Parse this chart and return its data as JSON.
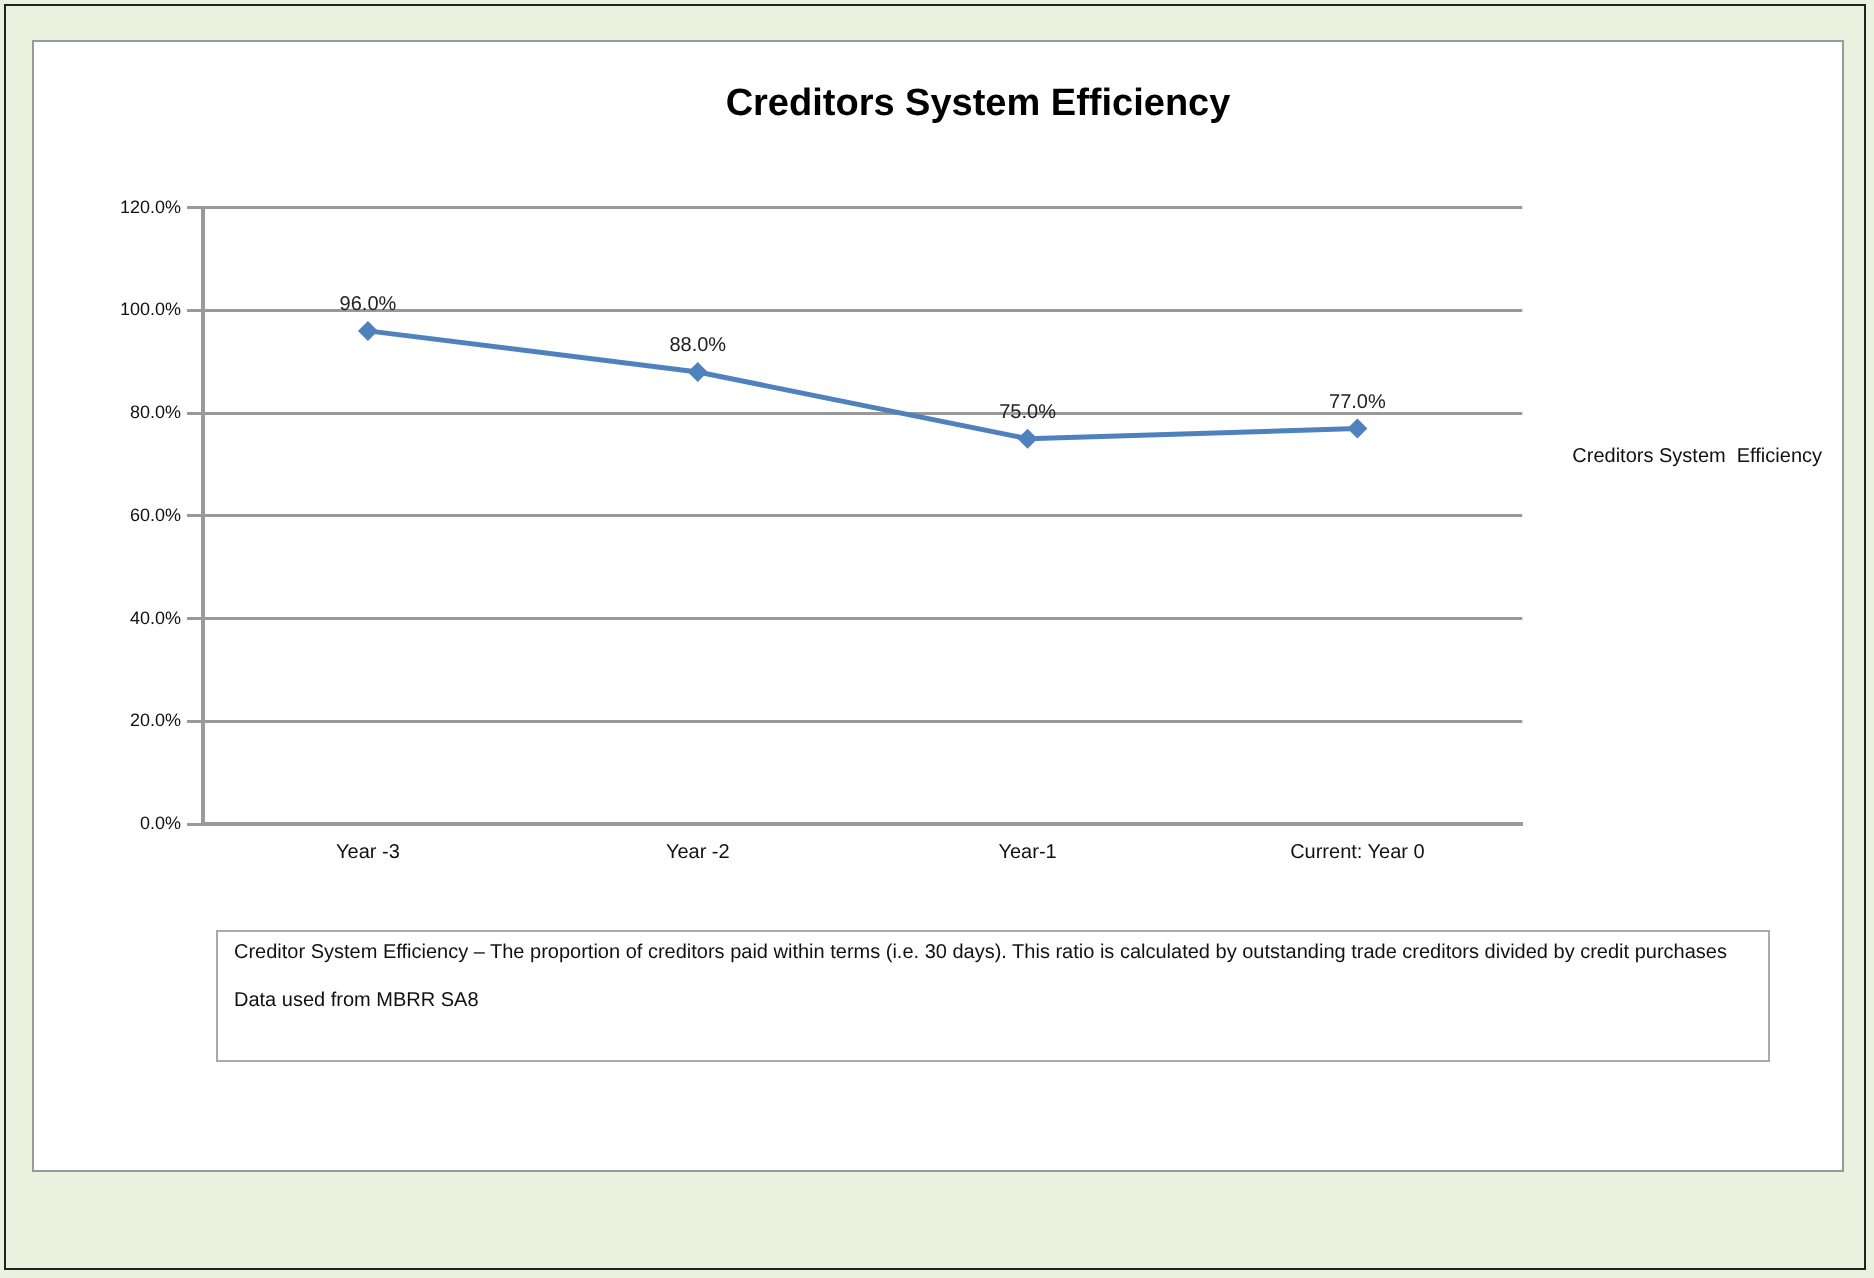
{
  "chart_data": {
    "type": "line",
    "title": "Creditors System Efficiency",
    "categories": [
      "Year -3",
      "Year -2",
      "Year-1",
      "Current: Year 0"
    ],
    "series": [
      {
        "name": "Creditors System  Efficiency",
        "color": "#4f81bd",
        "values": [
          96,
          88,
          75,
          77
        ],
        "value_labels": [
          "96.0%",
          "88.0%",
          "75.0%",
          "77.0%"
        ]
      }
    ],
    "ylim": [
      0,
      120
    ],
    "yticks": [
      {
        "value": 0,
        "label": "0.0%"
      },
      {
        "value": 20,
        "label": "20.0%"
      },
      {
        "value": 40,
        "label": "40.0%"
      },
      {
        "value": 60,
        "label": "60.0%"
      },
      {
        "value": 80,
        "label": "80.0%"
      },
      {
        "value": 100,
        "label": "100.0%"
      },
      {
        "value": 120,
        "label": "120.0%"
      }
    ],
    "grid": "y",
    "legend": "right",
    "marker": "diamond",
    "line_style": "solid",
    "annotations": [
      "Creditor System Efficiency –  The proportion of creditors paid within terms (i.e. 30 days). This ratio is calculated by  outstanding trade creditors divided by credit purchases",
      "Data used from  MBRR SA8"
    ]
  }
}
